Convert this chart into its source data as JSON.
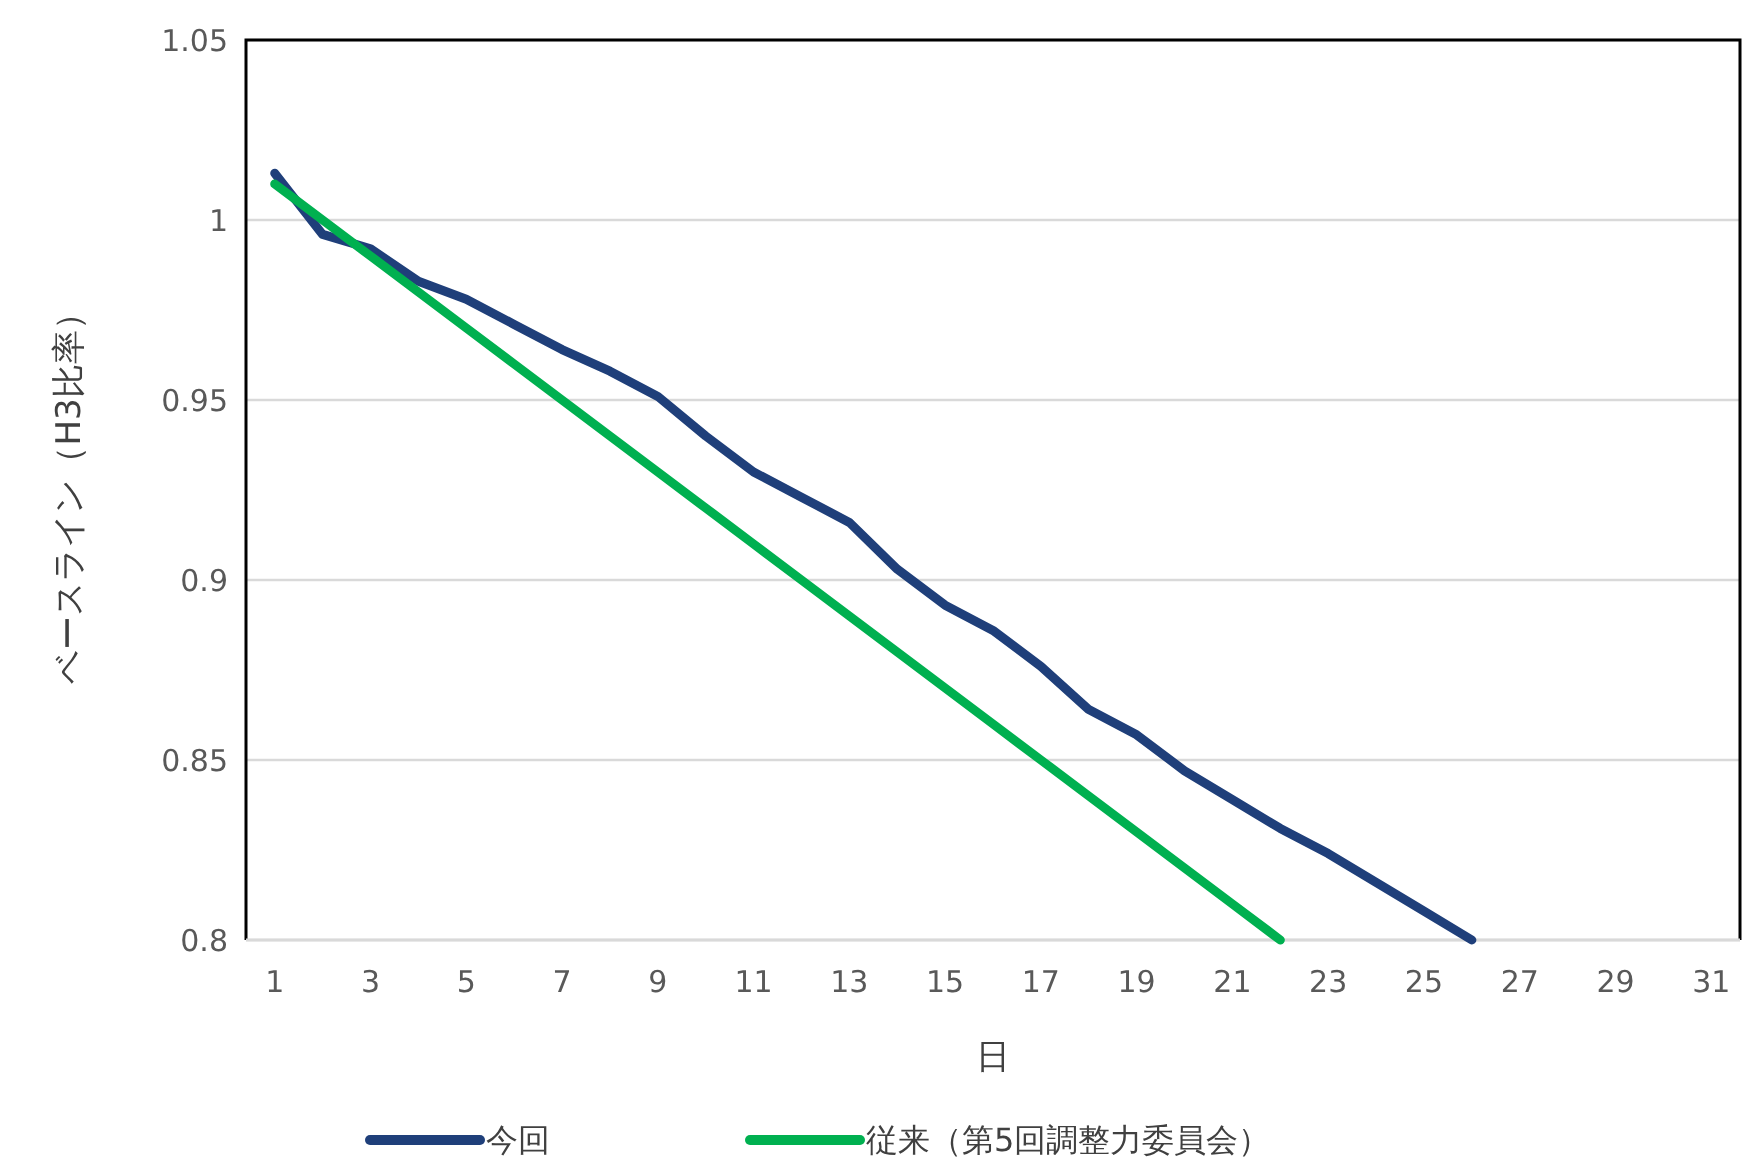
{
  "chart_data": {
    "type": "line",
    "xlabel": "日",
    "ylabel": "ベースライン（H3比率）",
    "x": [
      1,
      2,
      3,
      4,
      5,
      6,
      7,
      8,
      9,
      10,
      11,
      12,
      13,
      14,
      15,
      16,
      17,
      18,
      19,
      20,
      21,
      22,
      23,
      24,
      25,
      26
    ],
    "xlim": [
      0.4,
      31.6
    ],
    "xticks": [
      1,
      3,
      5,
      7,
      9,
      11,
      13,
      15,
      17,
      19,
      21,
      23,
      25,
      27,
      29,
      31
    ],
    "series": [
      {
        "name": "今回",
        "color": "#1f3f7a",
        "values": [
          1.013,
          0.996,
          0.992,
          0.983,
          0.978,
          0.971,
          0.964,
          0.958,
          0.951,
          0.94,
          0.93,
          0.923,
          0.916,
          0.903,
          0.893,
          0.886,
          0.876,
          0.864,
          0.857,
          0.847,
          0.839,
          0.831,
          0.824,
          0.816,
          0.808,
          0.8
        ]
      },
      {
        "name": "従来（第5回調整力委員会）",
        "color": "#00b050",
        "values": [
          1.01,
          1.0,
          0.99,
          0.98,
          0.97,
          0.96,
          0.95,
          0.94,
          0.93,
          0.92,
          0.91,
          0.9,
          0.89,
          0.88,
          0.87,
          0.86,
          0.85,
          0.84,
          0.83,
          0.82,
          0.81,
          0.8,
          null,
          null,
          null,
          null
        ]
      }
    ],
    "ylim": [
      0.8,
      1.05
    ],
    "yticks": [
      0.8,
      0.85,
      0.9,
      0.95,
      1,
      1.05
    ],
    "grid": "y",
    "legend": "bottom",
    "marker": "none",
    "line_style": "solid"
  }
}
